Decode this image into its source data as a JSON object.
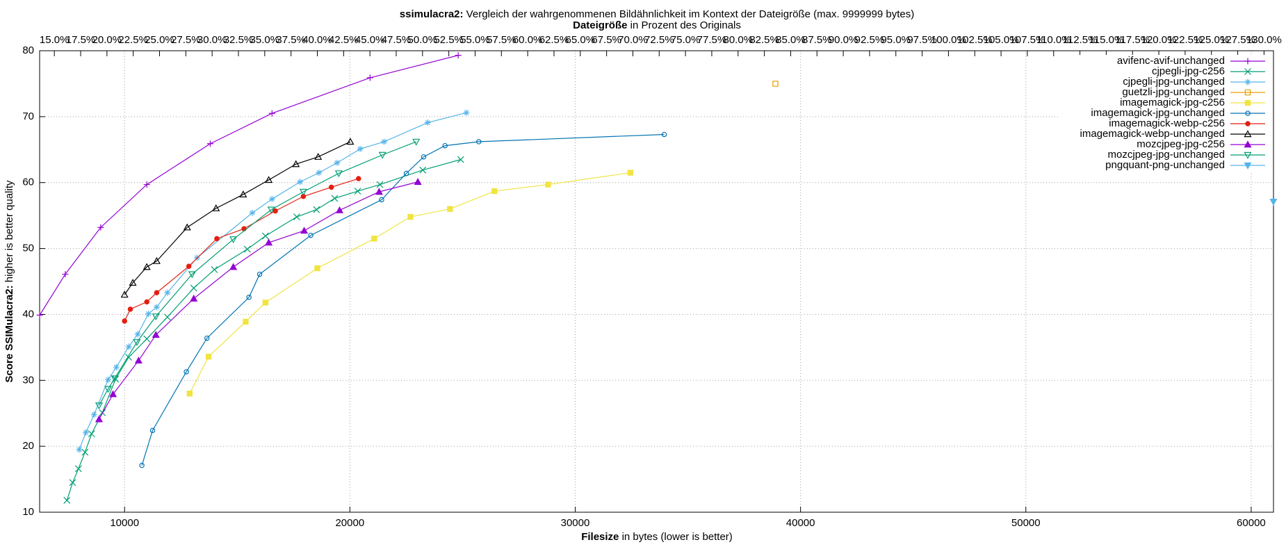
{
  "chart_data": {
    "type": "line",
    "title": [
      "ssimulacra2:",
      " Vergleich der wahrgenommenen Bildähnlichkeit im Kontext der Dateigröße (max. 9999999 bytes)"
    ],
    "subtitle": [
      "Dateigröße",
      " in Prozent des Originals"
    ],
    "xlabel": [
      "Filesize",
      " in bytes (lower is better)"
    ],
    "ylabel": [
      "Score SSIMulacra2:",
      " higher is better quality"
    ],
    "xlim": [
      6230,
      60990
    ],
    "ylim": [
      10,
      80
    ],
    "xticks": [
      10000,
      20000,
      30000,
      40000,
      50000,
      60000
    ],
    "yticks": [
      10,
      20,
      30,
      40,
      50,
      60,
      70,
      80
    ],
    "x2lim": [
      13.6,
      130.9
    ],
    "x2ticks": [
      {
        "value": 15,
        "label": "15.0%"
      },
      {
        "value": 17.5,
        "label": "17.5%"
      },
      {
        "value": 20,
        "label": "20.0%"
      },
      {
        "value": 22.5,
        "label": "22.5%"
      },
      {
        "value": 25,
        "label": "25.0%"
      },
      {
        "value": 27.5,
        "label": "27.5%"
      },
      {
        "value": 30,
        "label": "30.0%"
      },
      {
        "value": 32.5,
        "label": "32.5%"
      },
      {
        "value": 35,
        "label": "35.0%"
      },
      {
        "value": 37.5,
        "label": "37.5%"
      },
      {
        "value": 40,
        "label": "40.0%"
      },
      {
        "value": 42.5,
        "label": "42.5%"
      },
      {
        "value": 45,
        "label": "45.0%"
      },
      {
        "value": 47.5,
        "label": "47.5%"
      },
      {
        "value": 50,
        "label": "50.0%"
      },
      {
        "value": 52.5,
        "label": "52.5%"
      },
      {
        "value": 55,
        "label": "55.0%"
      },
      {
        "value": 57.5,
        "label": "57.5%"
      },
      {
        "value": 60,
        "label": "60.0%"
      },
      {
        "value": 62.5,
        "label": "62.5%"
      },
      {
        "value": 65,
        "label": "65.0%"
      },
      {
        "value": 67.5,
        "label": "67.5%"
      },
      {
        "value": 70,
        "label": "70.0%"
      },
      {
        "value": 72.5,
        "label": "72.5%"
      },
      {
        "value": 75,
        "label": "75.0%"
      },
      {
        "value": 77.5,
        "label": "77.5%"
      },
      {
        "value": 80,
        "label": "80.0%"
      },
      {
        "value": 82.5,
        "label": "82.5%"
      },
      {
        "value": 85,
        "label": "85.0%"
      },
      {
        "value": 87.5,
        "label": "87.5%"
      },
      {
        "value": 90,
        "label": "90.0%"
      },
      {
        "value": 92.5,
        "label": "92.5%"
      },
      {
        "value": 95,
        "label": "95.0%"
      },
      {
        "value": 97.5,
        "label": "97.5%"
      },
      {
        "value": 100,
        "label": "100.0%"
      },
      {
        "value": 102.5,
        "label": "102.5%"
      },
      {
        "value": 105,
        "label": "105.0%"
      },
      {
        "value": 107.5,
        "label": "107.5%"
      },
      {
        "value": 110,
        "label": "110.0%"
      },
      {
        "value": 112.5,
        "label": "112.5%"
      },
      {
        "value": 115,
        "label": "115.0%"
      },
      {
        "value": 117.5,
        "label": "117.5%"
      },
      {
        "value": 120,
        "label": "120.0%"
      },
      {
        "value": 122.5,
        "label": "122.5%"
      },
      {
        "value": 125,
        "label": "125.0%"
      },
      {
        "value": 127.5,
        "label": "127.5%"
      },
      {
        "value": 130,
        "label": "130.0%"
      }
    ],
    "grid": true,
    "legend": "top-right",
    "series": [
      {
        "name": "avifenc-avif-unchanged",
        "color": "#9400d3",
        "marker": "plus",
        "x": [
          6234,
          7367,
          8940,
          10987,
          13803,
          16545,
          20896,
          24808
        ],
        "values": [
          39.9,
          46.1,
          53.2,
          59.7,
          65.9,
          70.5,
          75.9,
          79.3
        ]
      },
      {
        "name": "cjpegli-jpg-c256",
        "color": "#009e73",
        "marker": "cross",
        "x": [
          7441,
          7697,
          7952,
          8245,
          8537,
          9013,
          9598,
          10183,
          10987,
          11901,
          13071,
          13985,
          15448,
          16252,
          17642,
          18519,
          19324,
          20347,
          21335,
          23236,
          24918
        ],
        "values": [
          11.8,
          14.5,
          16.6,
          19.1,
          21.9,
          25.1,
          30.2,
          33.5,
          36.3,
          39.6,
          44.0,
          46.8,
          49.9,
          51.9,
          54.8,
          55.9,
          57.6,
          58.7,
          59.7,
          61.9,
          63.5
        ]
      },
      {
        "name": "cjpegli-jpg-unchanged",
        "color": "#56b4e9",
        "marker": "star",
        "x": [
          7989,
          8282,
          8647,
          9269,
          9634,
          10183,
          10585,
          11060,
          11426,
          11901,
          13217,
          15667,
          16545,
          17788,
          18629,
          19433,
          20457,
          21517,
          23455,
          25174
        ],
        "values": [
          19.5,
          22.1,
          24.8,
          30.1,
          32.0,
          35.1,
          37.0,
          40.1,
          41.1,
          43.3,
          48.6,
          55.4,
          57.5,
          60.1,
          61.5,
          63.0,
          65.1,
          66.2,
          69.1,
          70.6
        ]
      },
      {
        "name": "guetzli-jpg-unchanged",
        "color": "#e69f00",
        "marker": "square-open",
        "x": [
          38885
        ],
        "values": [
          75.0
        ]
      },
      {
        "name": "imagemagick-jpg-c256",
        "color": "#f0e442",
        "marker": "square",
        "x": [
          12889,
          13730,
          15375,
          16252,
          18556,
          21079,
          22688,
          24443,
          26417,
          28793,
          32450
        ],
        "values": [
          28.0,
          33.6,
          38.9,
          41.8,
          47.0,
          51.5,
          54.8,
          56.0,
          58.7,
          59.7,
          61.5
        ]
      },
      {
        "name": "imagemagick-jpg-unchanged",
        "color": "#0072b2",
        "marker": "circle-open",
        "x": [
          10768,
          11243,
          12742,
          13656,
          15521,
          15996,
          18263,
          21408,
          22505,
          23273,
          24223,
          25722,
          33949
        ],
        "values": [
          17.1,
          22.4,
          31.3,
          36.4,
          42.6,
          46.1,
          52.0,
          57.4,
          61.4,
          63.9,
          65.6,
          66.2,
          67.3
        ]
      },
      {
        "name": "imagemagick-webp-c256",
        "color": "#e51e10",
        "marker": "circle",
        "x": [
          10000,
          10256,
          10987,
          11426,
          12852,
          14095,
          15302,
          16691,
          17934,
          19177,
          20384
        ],
        "values": [
          39.0,
          40.8,
          41.9,
          43.3,
          47.3,
          51.5,
          53.0,
          55.7,
          57.9,
          59.3,
          60.6
        ]
      },
      {
        "name": "imagemagick-webp-unchanged",
        "color": "#000000",
        "marker": "triangle-open",
        "x": [
          10000,
          10366,
          10987,
          11426,
          12779,
          14059,
          15265,
          16399,
          17605,
          18592,
          20018
        ],
        "values": [
          43.0,
          44.8,
          47.2,
          48.1,
          53.2,
          56.1,
          58.2,
          60.4,
          62.8,
          63.9,
          66.2
        ]
      },
      {
        "name": "mozcjpeg-jpg-c256",
        "color": "#9400d3",
        "marker": "triangle",
        "x": [
          8867,
          9488,
          10622,
          11390,
          13071,
          14826,
          16399,
          17971,
          19543,
          21298,
          23016
        ],
        "values": [
          24.1,
          27.9,
          33.0,
          36.9,
          42.4,
          47.2,
          50.9,
          52.7,
          55.8,
          58.6,
          60.1
        ]
      },
      {
        "name": "mozcjpeg-jpg-unchanged",
        "color": "#009e73",
        "marker": "triangle-down-open",
        "x": [
          8867,
          9269,
          9561,
          10548,
          11390,
          12998,
          14826,
          16508,
          17934,
          19506,
          21444,
          22943
        ],
        "values": [
          26.2,
          28.7,
          30.3,
          35.8,
          39.7,
          46.1,
          51.4,
          55.9,
          58.6,
          61.4,
          64.2,
          66.2
        ]
      },
      {
        "name": "pngquant-png-unchanged",
        "color": "#56b4e9",
        "marker": "triangle-down",
        "x": [
          60987
        ],
        "values": [
          57.1
        ]
      }
    ]
  }
}
